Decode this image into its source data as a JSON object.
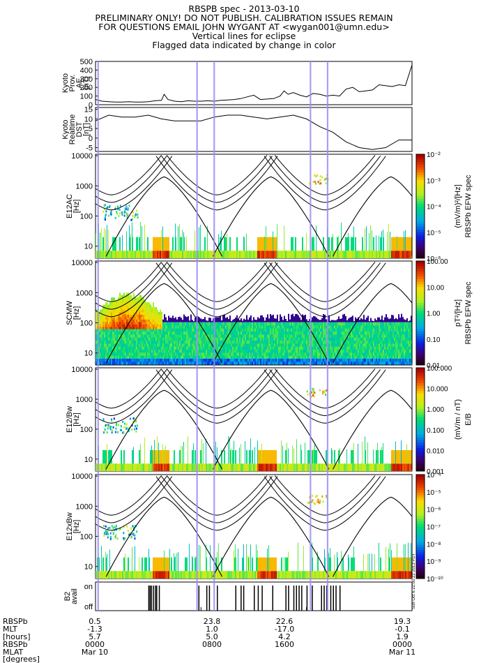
{
  "header": {
    "title": "RBSPB spec - 2013-03-10",
    "line2": "PRELIMINARY ONLY! DO NOT PUBLISH. CALIBRATION ISSUES REMAIN",
    "line3": "FOR QUESTIONS EMAIL JOHN WYGANT AT <wygan001@umn.edu>",
    "line4": "Vertical lines for eclipse",
    "line5": "Flagged data indicated by change in color"
  },
  "colors": {
    "eclipse_line": "#9a8ef5",
    "trace": "#000000"
  },
  "chart_data": [
    {
      "type": "line",
      "ylabel": "Kyoto Prov. AE [nT]",
      "yticks": [
        "500",
        "400",
        "300",
        "200",
        "100",
        "0"
      ],
      "ylim": [
        0,
        500
      ],
      "x_hours": [
        0,
        0.5,
        1,
        1.5,
        2,
        2.5,
        3,
        3.5,
        4,
        4.5,
        5,
        5.2,
        5.5,
        6,
        6.5,
        7,
        7.5,
        8,
        8.5,
        9,
        9.5,
        10,
        10.5,
        11,
        11.5,
        12,
        12.5,
        13,
        13.5,
        14,
        14.3,
        14.6,
        15,
        15.5,
        16,
        16.5,
        17,
        17.5,
        18,
        18.5,
        19,
        19.5,
        20,
        20.5,
        21,
        21.5,
        22,
        22.5,
        23,
        23.5,
        24
      ],
      "values": [
        60,
        40,
        35,
        30,
        30,
        35,
        30,
        30,
        35,
        45,
        50,
        120,
        60,
        40,
        35,
        45,
        40,
        40,
        45,
        40,
        50,
        55,
        60,
        70,
        90,
        110,
        60,
        65,
        70,
        100,
        160,
        120,
        140,
        110,
        90,
        130,
        120,
        100,
        110,
        100,
        180,
        200,
        150,
        160,
        170,
        230,
        220,
        210,
        230,
        220,
        460
      ]
    },
    {
      "type": "line",
      "ylabel": "Kyoto Realtime DST [nT]",
      "yticks": [
        "15",
        "10",
        "5",
        "0",
        "-5"
      ],
      "ylim": [
        -7,
        16
      ],
      "x_hours": [
        0,
        1,
        2,
        3,
        4,
        5,
        6,
        7,
        8,
        9,
        10,
        11,
        12,
        13,
        14,
        15,
        16,
        17,
        18,
        19,
        20,
        21,
        22,
        23,
        24
      ],
      "values": [
        9,
        12,
        11,
        11,
        12,
        10,
        9,
        9,
        9,
        11,
        12,
        12,
        11,
        10,
        11,
        12,
        10,
        6,
        3,
        -2,
        -5,
        -6,
        -5,
        -1,
        -1
      ]
    },
    {
      "type": "heatmap",
      "ylabel": "E12AC [Hz]",
      "yticks": [
        "10000",
        "1000",
        "100",
        "10"
      ],
      "colorbar_ticks": [
        "10⁻²",
        "10⁻³",
        "10⁻⁴",
        "10⁻⁵",
        "10⁻⁶"
      ],
      "colorbar_label": "(mV/m)²/[Hz]",
      "colorbar_title": "RBSPb EFW spec"
    },
    {
      "type": "heatmap",
      "ylabel": "SCMW [Hz]",
      "yticks": [
        "10000",
        "1000",
        "100",
        "10"
      ],
      "colorbar_ticks": [
        "100.00",
        "10.00",
        "1.00",
        "0.10",
        "0.01"
      ],
      "colorbar_label": "pT²/[Hz]",
      "colorbar_title": "RBSPb EFW spec"
    },
    {
      "type": "heatmap",
      "ylabel": "E12/Bw [Hz]",
      "yticks": [
        "10000",
        "1000",
        "100",
        "10"
      ],
      "colorbar_ticks": [
        "100.000",
        "10.000",
        "1.000",
        "0.100",
        "0.010",
        "0.001"
      ],
      "colorbar_label": "(mV/m / nT)",
      "colorbar_title": "E/B"
    },
    {
      "type": "heatmap",
      "ylabel": "E12xBw [Hz]",
      "yticks": [
        "10000",
        "1000",
        "100",
        "10"
      ],
      "colorbar_ticks": [
        "10⁻⁴",
        "10⁻⁵",
        "10⁻⁶",
        "10⁻⁷",
        "10⁻⁸",
        "10⁻⁹",
        "10⁻¹⁰"
      ]
    },
    {
      "type": "bar",
      "ylabel": "B2 avail",
      "yticks": [
        "on",
        "off"
      ],
      "x_hours": [
        4.0,
        4.1,
        4.2,
        4.35,
        4.5,
        4.6,
        4.8,
        7.8,
        8.4,
        8.6,
        9.2,
        10.6,
        11.0,
        11.2,
        12.0,
        12.3,
        12.6,
        13.4,
        14.4,
        14.6,
        15.0,
        15.2,
        15.4,
        15.6,
        16.0,
        16.4,
        17.1,
        17.3,
        17.5,
        17.8,
        18.0,
        18.2,
        18.5
      ]
    }
  ],
  "eclipse_hours": [
    0.2,
    7.7,
    9.0,
    16.3,
    17.6
  ],
  "timestamp": "Sun Oct 6 22:00:22 2013 PDT",
  "footer": {
    "labels": [
      "RBSPb",
      "MLT",
      "[hours]",
      "RBSPb",
      "MLAT",
      "[degrees]"
    ],
    "columns": [
      {
        "row1": "0.5",
        "row2": "-1.3",
        "row3": "5.7",
        "row4": "0000",
        "row5": "Mar 10"
      },
      {
        "row1": "23.8",
        "row2": "1.0",
        "row3": "5.0",
        "row4": "0800",
        "row5": ""
      },
      {
        "row1": "22.6",
        "row2": "-17.0",
        "row3": "4.2",
        "row4": "1600",
        "row5": ""
      },
      {
        "row1": "19.3",
        "row2": "-0.1",
        "row3": "1.9",
        "row4": "0000",
        "row5": "Mar 11"
      }
    ]
  }
}
